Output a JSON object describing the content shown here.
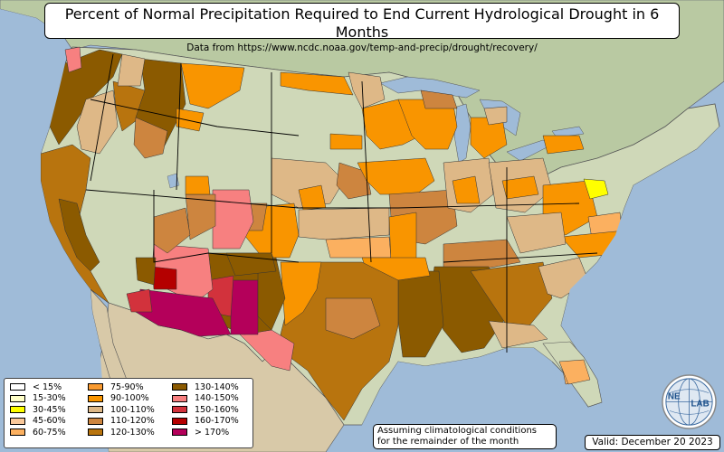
{
  "header": {
    "title": "Percent of Normal Precipitation Required to End Current Hydrological Drought in 6 Months",
    "subtitle": "Data from https://www.ncdc.noaa.gov/temp-and-precip/drought/recovery/"
  },
  "legend": {
    "items": [
      {
        "label": "< 15%",
        "color": "#ffffff"
      },
      {
        "label": "15-30%",
        "color": "#ffffc8"
      },
      {
        "label": "30-45%",
        "color": "#ffff00"
      },
      {
        "label": "45-60%",
        "color": "#f9c89a"
      },
      {
        "label": "60-75%",
        "color": "#fbb060"
      },
      {
        "label": "75-90%",
        "color": "#f99a30"
      },
      {
        "label": "90-100%",
        "color": "#f99500"
      },
      {
        "label": "100-110%",
        "color": "#deb887"
      },
      {
        "label": "110-120%",
        "color": "#cd853f"
      },
      {
        "label": "120-130%",
        "color": "#b8740e"
      },
      {
        "label": "130-140%",
        "color": "#8b5a00"
      },
      {
        "label": "140-150%",
        "color": "#f78080"
      },
      {
        "label": "150-160%",
        "color": "#d2323c"
      },
      {
        "label": "160-170%",
        "color": "#b40000"
      },
      {
        "label": "> 170%",
        "color": "#b4005a"
      }
    ]
  },
  "footer": {
    "note_line1": "Assuming climatological conditions",
    "note_line2": "for the remainder of the month",
    "valid": "Valid: December 20 2023"
  },
  "logo": {
    "text_left": "NE",
    "text_right": "LAB",
    "icon": "nexlab-globe-logo"
  },
  "colors": {
    "ocean": "#9fbbd8",
    "land": "#cfd8b8",
    "mexico_land": "#d8c9a8",
    "canada_land": "#b9c9a2"
  }
}
